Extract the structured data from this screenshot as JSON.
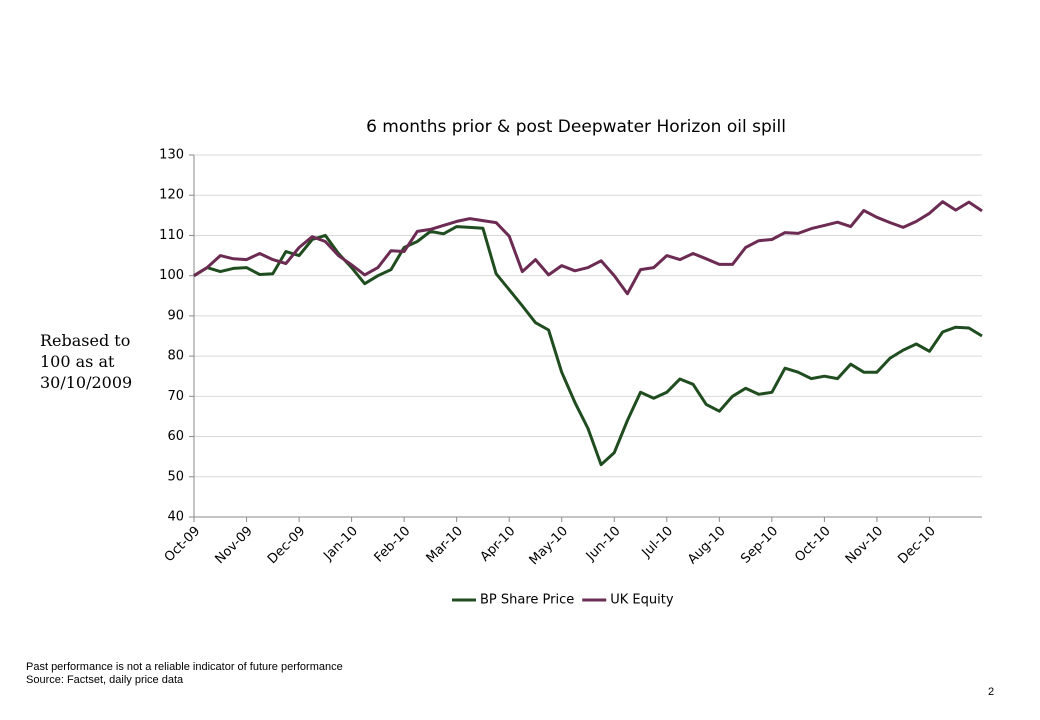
{
  "chart_data": {
    "type": "line",
    "title": "6 months prior & post Deepwater Horizon oil spill",
    "y_label": "Rebased to 100 as at 30/10/2009",
    "categories": [
      "Oct-09",
      null,
      null,
      null,
      "Nov-09",
      null,
      null,
      null,
      "Dec-09",
      null,
      null,
      null,
      "Jan-10",
      null,
      null,
      null,
      "Feb-10",
      null,
      null,
      null,
      "Mar-10",
      null,
      null,
      null,
      "Apr-10",
      null,
      null,
      null,
      "May-10",
      null,
      null,
      null,
      "Jun-10",
      null,
      null,
      null,
      "Jul-10",
      null,
      null,
      null,
      "Aug-10",
      null,
      null,
      null,
      "Sep-10",
      null,
      null,
      null,
      "Oct-10",
      null,
      null,
      null,
      "Nov-10",
      null,
      null,
      null,
      "Dec-10",
      null,
      null,
      null,
      null
    ],
    "series": [
      {
        "name": "BP Share Price",
        "color": "#1f4d1f",
        "values": [
          100,
          102,
          101,
          101.8,
          102,
          100.3,
          100.5,
          106,
          105,
          109,
          110,
          105.5,
          102,
          98,
          100,
          101.5,
          107,
          108.5,
          111,
          110.4,
          112.2,
          112,
          111.8,
          100.5,
          96.5,
          92.5,
          88.3,
          86.5,
          76,
          68.5,
          62,
          53,
          56,
          64,
          71,
          69.5,
          71,
          74.3,
          73,
          68,
          66.3,
          70,
          72,
          70.5,
          71,
          77,
          76,
          74.4,
          75,
          74.4,
          78,
          76,
          76,
          79.5,
          81.5,
          83,
          81.2,
          86,
          87.2,
          87,
          85
        ]
      },
      {
        "name": "UK Equity",
        "color": "#6b2b52",
        "values": [
          100,
          102,
          105,
          104.2,
          104,
          105.5,
          104,
          103,
          107,
          109.7,
          108.5,
          105,
          102.7,
          100.2,
          102,
          106.2,
          106,
          111,
          111.5,
          112.5,
          113.5,
          114.2,
          113.7,
          113.2,
          109.8,
          101,
          104,
          100.2,
          102.5,
          101.2,
          102,
          103.7,
          100,
          95.5,
          101.5,
          102,
          105,
          104,
          105.5,
          104.2,
          102.8,
          102.8,
          107,
          108.7,
          109,
          110.7,
          110.5,
          111.7,
          112.5,
          113.3,
          112.2,
          116.2,
          114.5,
          113.2,
          112,
          113.5,
          115.5,
          118.4,
          116.3,
          118.3,
          116.1
        ]
      }
    ],
    "ylim": [
      40,
      130
    ],
    "yticks": [
      40,
      50,
      60,
      70,
      80,
      90,
      100,
      110,
      120,
      130
    ],
    "grid": true,
    "legend": "bottom"
  },
  "footnotes": [
    "Past performance is not a reliable indicator of future performance",
    "Source: Factset, daily price data"
  ],
  "page_number": 2
}
